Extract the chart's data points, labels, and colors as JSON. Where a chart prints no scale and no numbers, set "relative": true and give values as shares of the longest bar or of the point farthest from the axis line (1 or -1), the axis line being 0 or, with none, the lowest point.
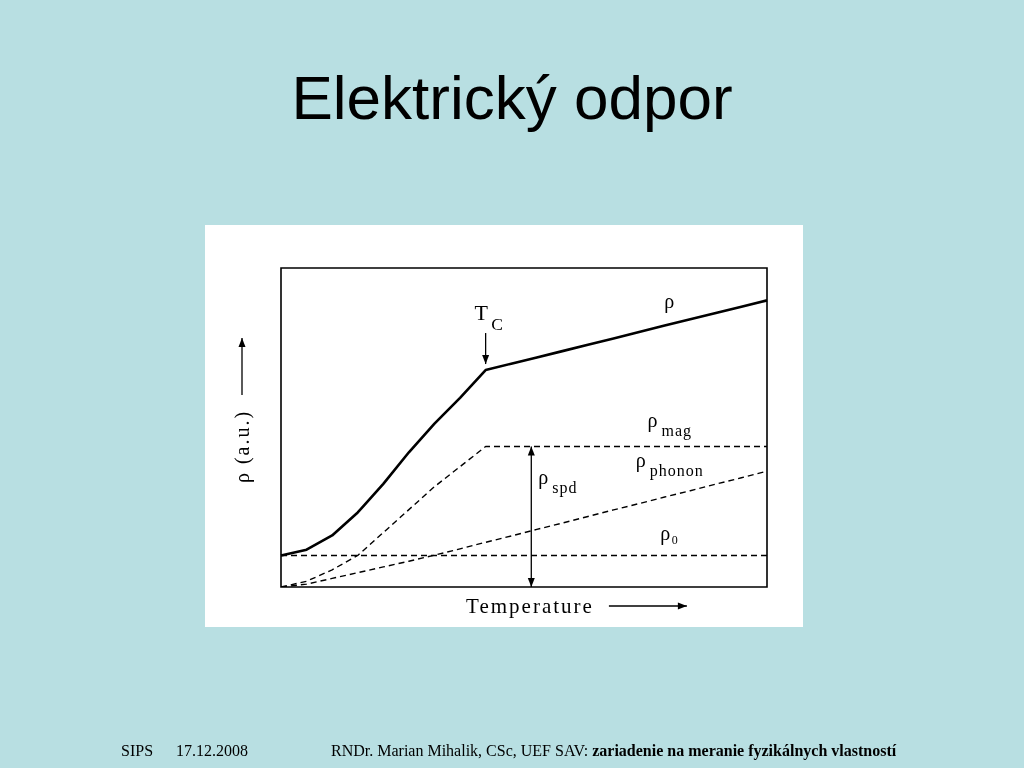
{
  "chart_data": {
    "type": "line",
    "title": "Elektrický odpor",
    "xlabel": "Temperature",
    "ylabel": "ρ (a.u.)",
    "relative": true,
    "marker": "none",
    "tick_labels": false,
    "categories": [
      null,
      null,
      null,
      null,
      null,
      null,
      null,
      null,
      null,
      null,
      null,
      null,
      null,
      null,
      null,
      null,
      null,
      null,
      null,
      null
    ],
    "series": [
      {
        "name": "ρ",
        "color": "#000000",
        "line_style": "solid",
        "values": [
          0.11,
          0.13,
          0.18,
          0.26,
          0.36,
          0.47,
          0.57,
          0.66,
          0.757,
          0.779,
          0.801,
          0.823,
          0.845,
          0.867,
          0.89,
          0.912,
          0.934,
          0.956,
          0.978,
          1
        ]
      },
      {
        "name": "ρ$_{mag}$",
        "color": "#000000",
        "line_style": "dashed",
        "values": [
          0,
          0.02,
          0.06,
          0.11,
          0.19,
          0.27,
          0.35,
          0.42,
          0.49,
          0.49,
          0.49,
          0.49,
          0.49,
          0.49,
          0.49,
          0.49,
          0.49,
          0.49,
          0.49,
          0.49
        ]
      },
      {
        "name": "ρ$_{phonon}$",
        "color": "#000000",
        "line_style": "dashed",
        "values": [
          0,
          0.01,
          0.03,
          0.05,
          0.07,
          0.09,
          0.111,
          0.133,
          0.156,
          0.178,
          0.201,
          0.223,
          0.246,
          0.269,
          0.291,
          0.314,
          0.336,
          0.359,
          0.381,
          0.404
        ]
      },
      {
        "name": "ρ₀",
        "color": "#000000",
        "line_style": "dashed",
        "values": [
          0.11,
          0.11,
          0.11,
          0.11,
          0.11,
          0.11,
          0.11,
          0.11,
          0.11,
          0.11,
          0.11,
          0.11,
          0.11,
          0.11,
          0.11,
          0.11,
          0.11,
          0.11,
          0.11,
          0.11
        ]
      }
    ],
    "annotations": [
      {
        "text": "T$_{C}$",
        "y": 0.757
      },
      {
        "text": "ρ$_{spd}$",
        "y": 0.49
      },
      "SIPS",
      "17.12.2008",
      "RNDr. Marian Mihalik, CSc, UEF SAV:",
      "zariadenie na meranie fyzikálnych vlastností"
    ]
  }
}
